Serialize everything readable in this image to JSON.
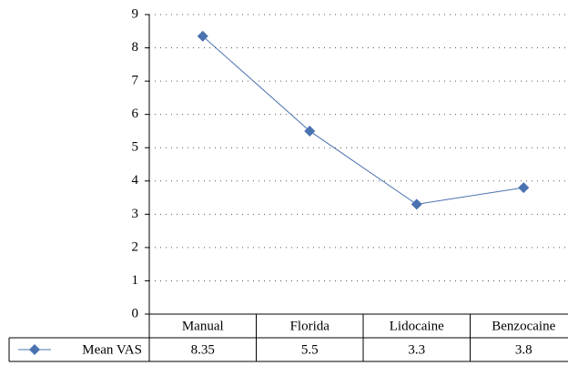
{
  "chart_data": {
    "type": "line",
    "categories": [
      "Manual",
      "Florida",
      "Lidocaine",
      "Benzocaine"
    ],
    "series": [
      {
        "name": "Mean VAS",
        "color": "#4a72b0",
        "values": [
          8.35,
          5.5,
          3.3,
          3.8
        ]
      }
    ],
    "ylim": [
      0,
      9
    ],
    "yticks": [
      0,
      1,
      2,
      3,
      4,
      5,
      6,
      7,
      8,
      9
    ],
    "grid": true,
    "data_table": true,
    "marker": "diamond"
  }
}
